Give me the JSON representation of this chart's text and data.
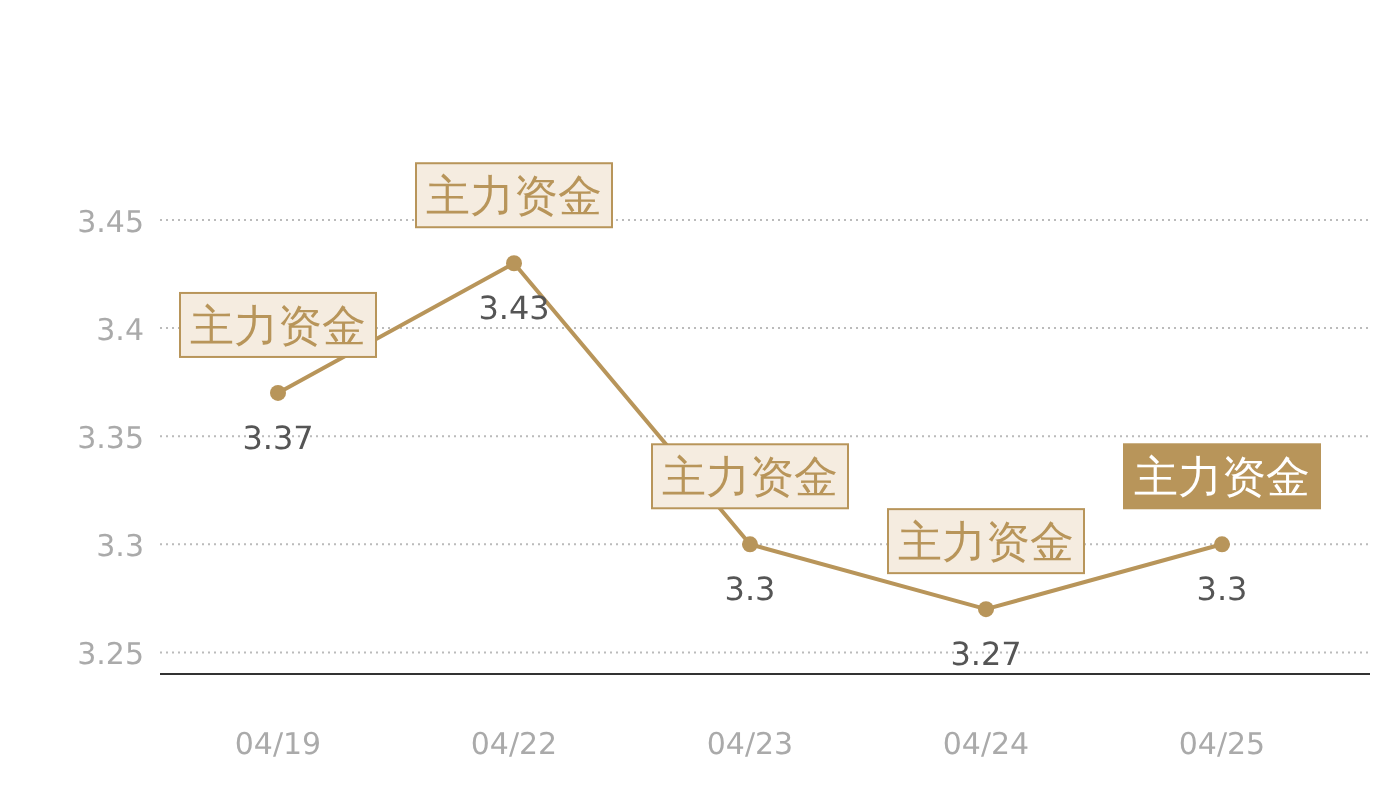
{
  "chart_data": {
    "type": "line",
    "categories": [
      "04/19",
      "04/22",
      "04/23",
      "04/24",
      "04/25"
    ],
    "series": [
      {
        "color": "#b8955a",
        "values": [
          3.37,
          3.43,
          3.3,
          3.27,
          3.3
        ]
      }
    ],
    "ylim": [
      3.24,
      3.45
    ],
    "yticks": [
      3.25,
      3.3,
      3.35,
      3.4,
      3.45
    ],
    "grid": "y",
    "marker": "circle",
    "line_style": "solid",
    "data_labels": true,
    "annotations": [
      {
        "text": "主力资金",
        "x": "04/19",
        "y": 3.37
      },
      {
        "text": "主力资金",
        "x": "04/22",
        "y": 3.43
      },
      {
        "text": "主力资金",
        "x": "04/23",
        "y": 3.3
      },
      {
        "text": "主力资金",
        "x": "04/24",
        "y": 3.27
      },
      {
        "text": "主力资金",
        "x": "04/25",
        "y": 3.3
      }
    ]
  }
}
